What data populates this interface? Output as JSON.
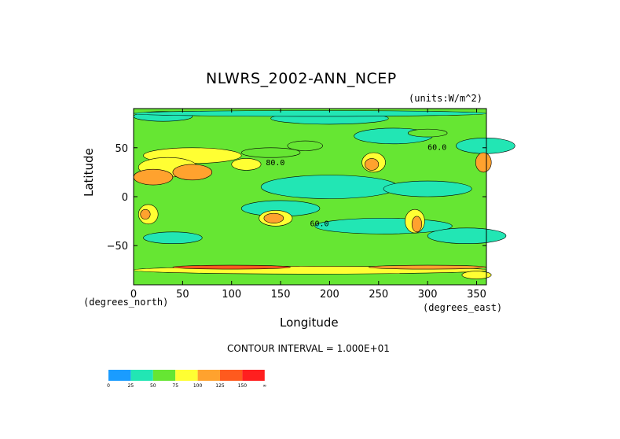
{
  "chart_data": {
    "type": "heatmap",
    "title": "NLWRS_2002-ANN_NCEP",
    "units_label": "(units:W/m^2)",
    "xlabel": "Longitude",
    "ylabel": "Latitude",
    "x_units": "(degrees_east)",
    "y_units": "(degrees_north)",
    "xlim": [
      0,
      360
    ],
    "ylim": [
      -90,
      90
    ],
    "x_ticks": [
      0,
      50,
      100,
      150,
      200,
      250,
      300,
      350
    ],
    "y_ticks": [
      -50,
      0,
      50
    ],
    "contour_note": "CONTOUR INTERVAL = 1.000E+01",
    "contour_labels": [
      {
        "x": 135,
        "y": 32,
        "text": "80.0"
      },
      {
        "x": 300,
        "y": 48,
        "text": "60.0"
      },
      {
        "x": 180,
        "y": -30,
        "text": "60.0"
      }
    ],
    "colorbar": {
      "ticks": [
        "0",
        "25",
        "50",
        "75",
        "100",
        "125",
        "150",
        "∞"
      ],
      "colors": [
        "#1a9cff",
        "#22e6b4",
        "#66e633",
        "#ffff33",
        "#ffa22e",
        "#ff5a1e",
        "#ff1f1f"
      ]
    },
    "background_color": "#66e633"
  }
}
